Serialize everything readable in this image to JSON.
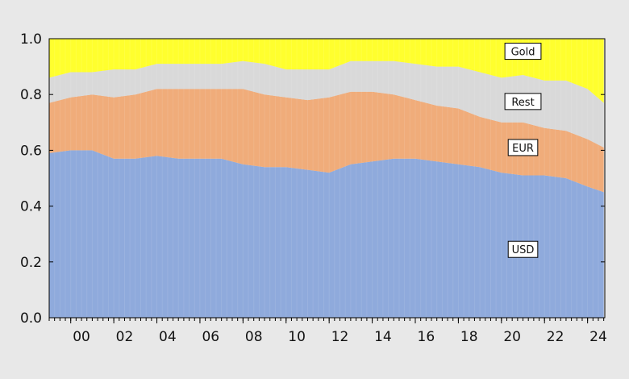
{
  "chart_data": {
    "type": "area",
    "stacked": true,
    "title": "",
    "xlabel": "",
    "ylabel": "",
    "ylim": [
      0,
      1
    ],
    "xlim": [
      1999.0,
      2024.8
    ],
    "y_ticks": [
      "0.0",
      "0.2",
      "0.4",
      "0.6",
      "0.8",
      "1.0"
    ],
    "x_ticks": [
      "00",
      "02",
      "04",
      "06",
      "08",
      "10",
      "12",
      "14",
      "16",
      "18",
      "20",
      "22",
      "24"
    ],
    "grid": false,
    "legend": "inline labels",
    "x": [
      1999.0,
      2000.0,
      2001.0,
      2002.0,
      2003.0,
      2004.0,
      2005.0,
      2006.0,
      2007.0,
      2008.0,
      2009.0,
      2010.0,
      2011.0,
      2012.0,
      2013.0,
      2014.0,
      2015.0,
      2016.0,
      2017.0,
      2018.0,
      2019.0,
      2020.0,
      2021.0,
      2022.0,
      2023.0,
      2024.0,
      2024.75
    ],
    "series": [
      {
        "name": "USD",
        "color": "#8faadc",
        "values": [
          0.59,
          0.6,
          0.6,
          0.57,
          0.57,
          0.58,
          0.57,
          0.57,
          0.57,
          0.55,
          0.54,
          0.54,
          0.53,
          0.52,
          0.55,
          0.56,
          0.57,
          0.57,
          0.56,
          0.55,
          0.54,
          0.52,
          0.51,
          0.51,
          0.5,
          0.47,
          0.45
        ]
      },
      {
        "name": "EUR",
        "color": "#f0ac7a",
        "values": [
          0.18,
          0.19,
          0.2,
          0.22,
          0.23,
          0.24,
          0.25,
          0.25,
          0.25,
          0.27,
          0.26,
          0.25,
          0.25,
          0.27,
          0.26,
          0.25,
          0.23,
          0.21,
          0.2,
          0.2,
          0.18,
          0.18,
          0.19,
          0.17,
          0.17,
          0.17,
          0.16
        ]
      },
      {
        "name": "Rest",
        "color": "#d9d9d9",
        "values": [
          0.09,
          0.09,
          0.08,
          0.1,
          0.09,
          0.09,
          0.09,
          0.09,
          0.09,
          0.1,
          0.11,
          0.1,
          0.11,
          0.1,
          0.11,
          0.11,
          0.12,
          0.13,
          0.14,
          0.15,
          0.16,
          0.16,
          0.17,
          0.17,
          0.18,
          0.18,
          0.16
        ]
      },
      {
        "name": "Gold",
        "color": "#ffff2e",
        "values": [
          0.14,
          0.12,
          0.12,
          0.11,
          0.11,
          0.09,
          0.09,
          0.09,
          0.09,
          0.08,
          0.09,
          0.11,
          0.11,
          0.11,
          0.08,
          0.08,
          0.08,
          0.09,
          0.1,
          0.1,
          0.12,
          0.14,
          0.13,
          0.15,
          0.15,
          0.18,
          0.23
        ]
      }
    ]
  }
}
